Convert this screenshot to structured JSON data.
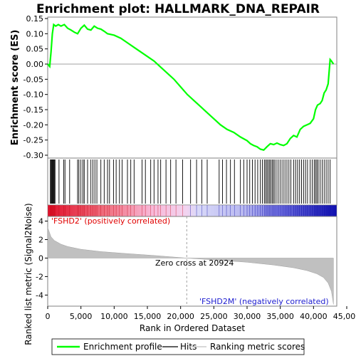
{
  "chart_data": {
    "type": "line",
    "title": "Enrichment plot: HALLMARK_DNA_REPAIR",
    "xlabel": "Rank in Ordered Dataset",
    "ylabel_top": "Enrichment score (ES)",
    "ylabel_bottom": "Ranked list metric (Signal2Noise)",
    "xlim": [
      0,
      43500
    ],
    "x_ticks": [
      0,
      5000,
      10000,
      15000,
      20000,
      25000,
      30000,
      35000,
      40000,
      45000
    ],
    "x_tick_labels": [
      "0",
      "5,000",
      "10,000",
      "15,000",
      "20,000",
      "25,000",
      "30,000",
      "35,000",
      "40,000",
      "45,000"
    ],
    "es_ylim": [
      -0.3,
      0.15
    ],
    "es_ticks": [
      0.15,
      0.1,
      0.05,
      0.0,
      -0.05,
      -0.1,
      -0.15,
      -0.2,
      -0.25,
      -0.3
    ],
    "es_tick_labels": [
      "0.15",
      "0.10",
      "0.05",
      "0.00",
      "-0.05",
      "-0.10",
      "-0.15",
      "-0.20",
      "-0.25",
      "-0.30"
    ],
    "metric_ylim": [
      -5.2,
      4.5
    ],
    "metric_ticks": [
      4,
      2,
      0,
      -2,
      -4
    ],
    "metric_tick_labels": [
      "4",
      "2",
      "0",
      "-2",
      "-4"
    ],
    "series": [
      {
        "name": "Enrichment profile",
        "color": "#00ff00",
        "x": [
          0,
          300,
          500,
          700,
          900,
          1200,
          1600,
          2000,
          2500,
          3000,
          3500,
          4000,
          4500,
          5000,
          5500,
          6000,
          6500,
          7000,
          7500,
          8000,
          8500,
          9000,
          10000,
          11000,
          12000,
          13000,
          14000,
          15000,
          16000,
          17000,
          18000,
          19000,
          20000,
          21000,
          22000,
          23000,
          24000,
          25000,
          26000,
          27000,
          28000,
          29000,
          30000,
          30500,
          31000,
          31500,
          32000,
          32500,
          33000,
          33500,
          34000,
          34500,
          35000,
          35500,
          36000,
          36500,
          37000,
          37500,
          38000,
          38500,
          39000,
          39500,
          40000,
          40300,
          40600,
          41000,
          41300,
          41600,
          41900,
          42200,
          42500,
          42700,
          43000
        ],
        "values": [
          0.0,
          -0.008,
          0.04,
          0.1,
          0.13,
          0.125,
          0.13,
          0.125,
          0.13,
          0.118,
          0.112,
          0.105,
          0.1,
          0.118,
          0.128,
          0.115,
          0.112,
          0.125,
          0.118,
          0.115,
          0.108,
          0.1,
          0.095,
          0.085,
          0.07,
          0.055,
          0.04,
          0.025,
          0.01,
          -0.01,
          -0.03,
          -0.05,
          -0.075,
          -0.1,
          -0.12,
          -0.14,
          -0.16,
          -0.18,
          -0.2,
          -0.215,
          -0.225,
          -0.24,
          -0.252,
          -0.262,
          -0.268,
          -0.272,
          -0.28,
          -0.283,
          -0.272,
          -0.262,
          -0.265,
          -0.26,
          -0.265,
          -0.268,
          -0.262,
          -0.245,
          -0.235,
          -0.24,
          -0.215,
          -0.205,
          -0.2,
          -0.195,
          -0.18,
          -0.15,
          -0.135,
          -0.13,
          -0.12,
          -0.095,
          -0.085,
          -0.065,
          0.015,
          0.01,
          0.0
        ]
      }
    ],
    "hits": [
      400,
      500,
      600,
      700,
      800,
      900,
      1000,
      1100,
      1700,
      2400,
      2600,
      3300,
      4500,
      4700,
      5000,
      5300,
      5500,
      6000,
      6500,
      6800,
      7100,
      7400,
      8000,
      8500,
      9000,
      9300,
      9900,
      10300,
      10800,
      11200,
      12000,
      12500,
      13000,
      14200,
      14700,
      15500,
      16000,
      16600,
      17000,
      17800,
      18500,
      19300,
      20300,
      21500,
      22400,
      23200,
      24000,
      25800,
      26300,
      26900,
      27500,
      28100,
      29000,
      29500,
      30000,
      30400,
      30800,
      31200,
      31600,
      32000,
      32300,
      32600,
      32800,
      33000,
      33200,
      33400,
      33600,
      33800,
      34000,
      34200,
      34500,
      34800,
      35100,
      35400,
      35700,
      36000,
      36300,
      36600,
      37000,
      37300,
      37600,
      37900,
      38200,
      38500,
      38800,
      39100,
      39500,
      39800,
      40100,
      40300,
      40500,
      40700,
      41000,
      41300,
      41600,
      41900,
      42200,
      42500
    ],
    "zero_cross": 20924,
    "zero_cross_label": "Zero cross at 20924",
    "pos_label": "'FSHD2' (positively correlated)",
    "neg_label": "'FSHD2M' (negatively correlated)",
    "metric_curve_x": [
      0,
      200,
      500,
      1000,
      2000,
      3000,
      5000,
      8000,
      12000,
      16000,
      20924,
      25000,
      30000,
      34000,
      37000,
      39000,
      40500,
      41500,
      42200,
      42700,
      43000
    ],
    "metric_curve_y": [
      3.3,
      2.9,
      2.3,
      1.9,
      1.5,
      1.25,
      0.95,
      0.7,
      0.48,
      0.28,
      0.0,
      -0.2,
      -0.45,
      -0.75,
      -1.05,
      -1.35,
      -1.7,
      -2.1,
      -2.7,
      -3.6,
      -5.0
    ],
    "legend": {
      "profile": "Enrichment profile",
      "hits": "Hits",
      "metric": "Ranking metric scores"
    }
  }
}
